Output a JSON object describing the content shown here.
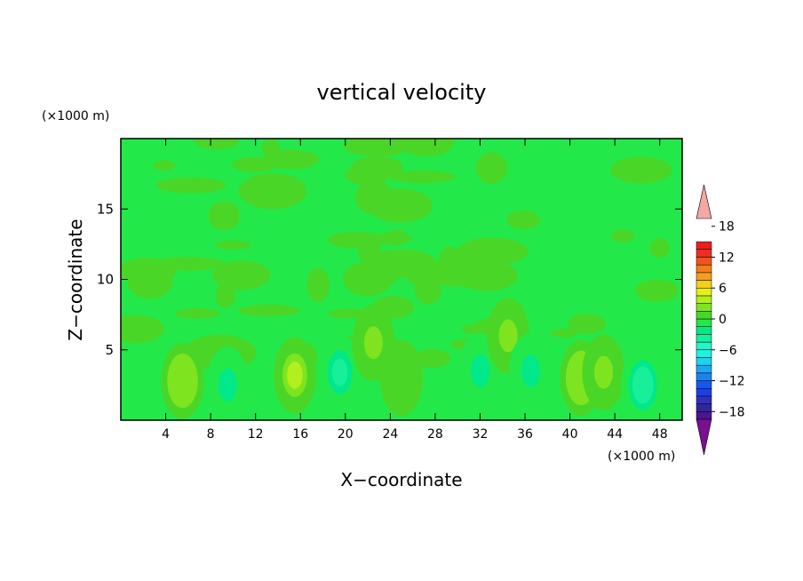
{
  "chart_data": {
    "type": "heatmap",
    "title": "vertical velocity",
    "xlabel": "X−coordinate",
    "ylabel": "Z−coordinate",
    "x_unit": "(×1000 m)",
    "y_unit": "(×1000 m)",
    "xlim": [
      0,
      50
    ],
    "ylim": [
      0,
      20
    ],
    "x_ticks": [
      4,
      8,
      12,
      16,
      20,
      24,
      28,
      32,
      36,
      40,
      44,
      48
    ],
    "y_ticks": [
      5,
      10,
      15
    ],
    "colorbar": {
      "levels": [
        -21,
        -19.5,
        -18,
        -16.5,
        -15,
        -13.5,
        -12,
        -10.5,
        -9,
        -7.5,
        -6,
        -4.5,
        -3,
        -1.5,
        0,
        1.5,
        3,
        4.5,
        6,
        7.5,
        9,
        10.5,
        12,
        13.5,
        15,
        16.5,
        18,
        19.5,
        21
      ],
      "tick_labels": [
        "18",
        "12",
        "6",
        "0",
        "−6",
        "−12",
        "−18"
      ],
      "tick_values": [
        18,
        12,
        6,
        0,
        -6,
        -12,
        -18
      ],
      "colors": [
        "#7a0f8f",
        "#4a168c",
        "#32269b",
        "#2d32c0",
        "#1f3fe6",
        "#1259f0",
        "#1b83f0",
        "#1fa6f2",
        "#1ed3f2",
        "#20f2e0",
        "#2cf2c8",
        "#18ef9a",
        "#00e88a",
        "#22e84a",
        "#4ad626",
        "#7ee41f",
        "#b2ef1c",
        "#e4f01c",
        "#f2cf1b",
        "#f2a01a",
        "#f27f1a",
        "#f0541c",
        "#ee2e22",
        "#ea1f1f",
        "#f5a6a6"
      ]
    },
    "features": [
      {
        "x": 5.5,
        "z": 2.8,
        "w": 3.5
      },
      {
        "x": 9.5,
        "z": 2.5,
        "w": -3.5
      },
      {
        "x": 15.5,
        "z": 3.2,
        "w": 4.0
      },
      {
        "x": 19.5,
        "z": 3.4,
        "w": -4.5
      },
      {
        "x": 22.5,
        "z": 5.5,
        "w": 2.5
      },
      {
        "x": 25.0,
        "z": 3.0,
        "w": 1.0
      },
      {
        "x": 32.0,
        "z": 3.5,
        "w": -3.0
      },
      {
        "x": 34.5,
        "z": 6.0,
        "w": 2.5
      },
      {
        "x": 36.5,
        "z": 3.5,
        "w": -3.0
      },
      {
        "x": 41.0,
        "z": 3.0,
        "w": 3.5
      },
      {
        "x": 43.0,
        "z": 3.4,
        "w": 3.0
      },
      {
        "x": 46.5,
        "z": 2.5,
        "w": -5.5
      }
    ]
  }
}
